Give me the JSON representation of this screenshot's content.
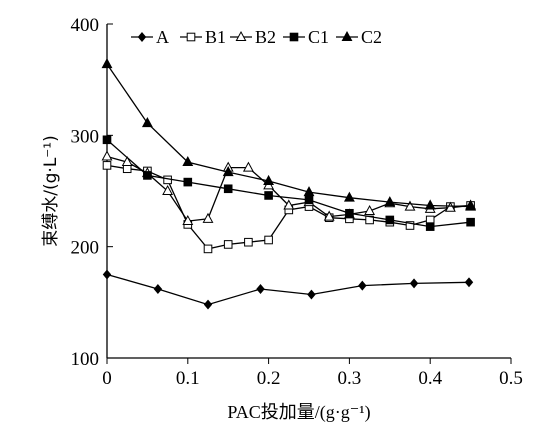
{
  "chart_data": {
    "type": "line",
    "title": "",
    "xlabel": "PAC投加量/(g·g⁻¹)",
    "ylabel": "束缚水/(g·L⁻¹)",
    "xlim": [
      0,
      0.5
    ],
    "ylim": [
      100,
      400
    ],
    "x_ticks": [
      "0",
      "0.1",
      "0.2",
      "0.3",
      "0.4",
      "0.5"
    ],
    "y_ticks": [
      "100",
      "200",
      "300",
      "400"
    ],
    "grid": false,
    "legend_position": "top",
    "series": [
      {
        "name": "A",
        "marker": "diamond-filled",
        "x": [
          0,
          0.063,
          0.125,
          0.19,
          0.253,
          0.316,
          0.38,
          0.448
        ],
        "y": [
          175,
          162,
          148,
          162,
          157,
          165,
          167,
          168
        ]
      },
      {
        "name": "B1",
        "marker": "square-open",
        "x": [
          0,
          0.025,
          0.05,
          0.075,
          0.1,
          0.125,
          0.15,
          0.175,
          0.2,
          0.225,
          0.25,
          0.275,
          0.3,
          0.325,
          0.35,
          0.375,
          0.4,
          0.425,
          0.45
        ],
        "y": [
          273,
          270,
          268,
          260,
          220,
          198,
          202,
          204,
          206,
          233,
          236,
          226,
          225,
          224,
          222,
          219,
          224,
          236,
          237
        ]
      },
      {
        "name": "B2",
        "marker": "triangle-open",
        "x": [
          0,
          0.025,
          0.05,
          0.075,
          0.1,
          0.125,
          0.15,
          0.175,
          0.2,
          0.225,
          0.25,
          0.275,
          0.3,
          0.325,
          0.35,
          0.375,
          0.4,
          0.425,
          0.45
        ],
        "y": [
          281,
          276,
          266,
          250,
          223,
          225,
          271,
          271,
          255,
          237,
          240,
          227,
          229,
          232,
          239,
          236,
          234,
          235,
          237
        ]
      },
      {
        "name": "C1",
        "marker": "square-filled",
        "x": [
          0,
          0.05,
          0.1,
          0.15,
          0.2,
          0.25,
          0.3,
          0.35,
          0.4,
          0.45
        ],
        "y": [
          296,
          264,
          258,
          252,
          246,
          242,
          230,
          224,
          218,
          222
        ]
      },
      {
        "name": "C2",
        "marker": "triangle-filled",
        "x": [
          0,
          0.05,
          0.1,
          0.15,
          0.2,
          0.25,
          0.3,
          0.35,
          0.4,
          0.45
        ],
        "y": [
          364,
          311,
          276,
          267,
          259,
          249,
          244,
          240,
          237,
          236
        ]
      }
    ]
  }
}
